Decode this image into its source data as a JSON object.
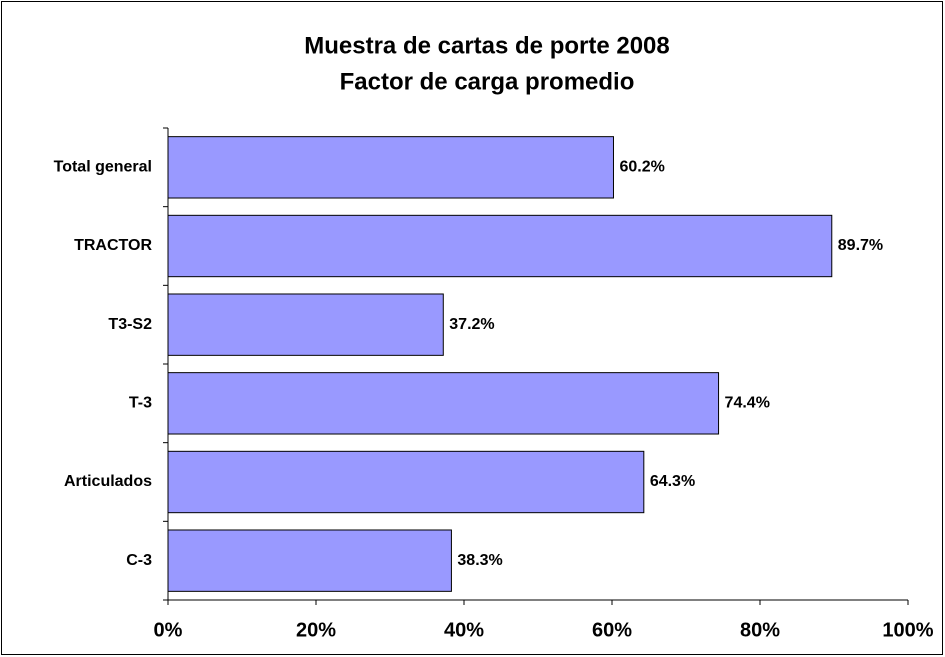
{
  "chart_data": {
    "type": "bar",
    "orientation": "horizontal",
    "title": "Muestra de cartas de porte 2008",
    "subtitle": "Factor de carga promedio",
    "categories": [
      "Total general",
      "TRACTOR",
      "T3-S2",
      "T-3",
      "Articulados",
      "C-3"
    ],
    "values": [
      60.2,
      89.7,
      37.2,
      74.4,
      64.3,
      38.3
    ],
    "value_labels": [
      "60.2%",
      "89.7%",
      "37.2%",
      "74.4%",
      "64.3%",
      "38.3%"
    ],
    "color": "#9999ff",
    "xlim": [
      0,
      100
    ],
    "xticks": [
      {
        "value": 0,
        "label": "0%"
      },
      {
        "value": 20,
        "label": "20%"
      },
      {
        "value": 40,
        "label": "40%"
      },
      {
        "value": 60,
        "label": "60%"
      },
      {
        "value": 80,
        "label": "80%"
      },
      {
        "value": 100,
        "label": "100%"
      }
    ],
    "grid": false
  }
}
